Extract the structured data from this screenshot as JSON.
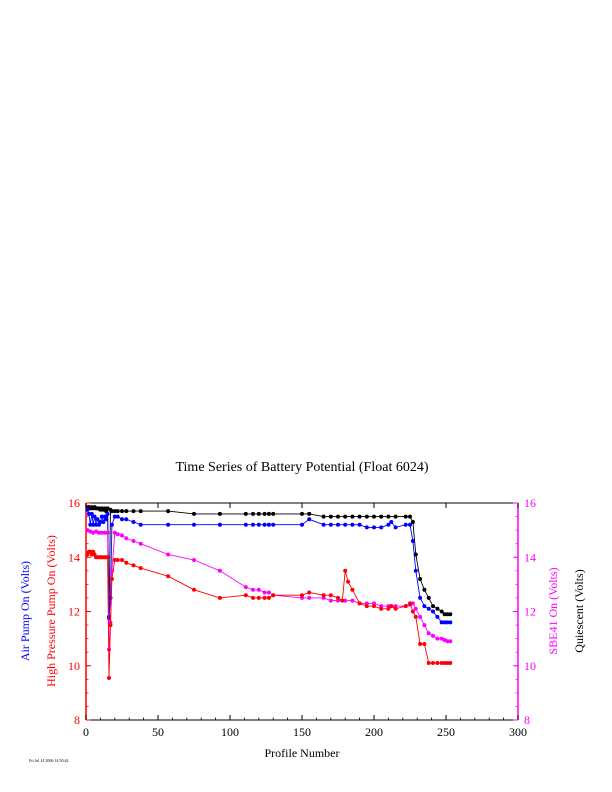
{
  "chart_data": {
    "type": "line",
    "title": "Time Series of Battery Potential (Float 6024)",
    "xlabel": "Profile Number",
    "xlim": [
      0,
      300
    ],
    "xticks": [
      0,
      50,
      100,
      150,
      200,
      250,
      300
    ],
    "ylim": [
      8,
      16
    ],
    "yticks": [
      8,
      10,
      12,
      14,
      16
    ],
    "left_axis_labels": [
      {
        "text": "Air Pump On (Volts)",
        "color": "#0000ff"
      },
      {
        "text": "High Pressure Pump On (Volts)",
        "color": "#ff0000"
      }
    ],
    "right_axis_labels": [
      {
        "text": "SBE41 On (Volts)",
        "color": "#ff00ff"
      },
      {
        "text": "Quiescent (Volts)",
        "color": "#000000"
      }
    ],
    "left_axis_color": "#ff0000",
    "right_axis_color": "#ff00ff",
    "footer_text": "Fri Jul 14 2006 14:50:44",
    "series": [
      {
        "name": "Quiescent (Volts)",
        "color": "#000000",
        "x": [
          1,
          2,
          3,
          4,
          5,
          6,
          7,
          8,
          9,
          10,
          11,
          12,
          13,
          14,
          15,
          16,
          17,
          18,
          20,
          22,
          25,
          28,
          33,
          38,
          57,
          75,
          93,
          111,
          116,
          120,
          124,
          127,
          130,
          150,
          155,
          165,
          170,
          175,
          180,
          185,
          190,
          195,
          200,
          205,
          210,
          215,
          222,
          225,
          227,
          229,
          232,
          235,
          238,
          241,
          244,
          247,
          249,
          251,
          253
        ],
        "y": [
          15.85,
          15.85,
          15.8,
          15.85,
          15.8,
          15.85,
          15.8,
          15.8,
          15.8,
          15.75,
          15.8,
          15.75,
          15.8,
          15.7,
          15.8,
          11.8,
          15.75,
          15.7,
          15.7,
          15.7,
          15.7,
          15.7,
          15.7,
          15.7,
          15.7,
          15.6,
          15.6,
          15.6,
          15.6,
          15.6,
          15.6,
          15.6,
          15.6,
          15.6,
          15.6,
          15.5,
          15.5,
          15.5,
          15.5,
          15.5,
          15.5,
          15.5,
          15.5,
          15.5,
          15.5,
          15.5,
          15.5,
          15.5,
          15.3,
          14.1,
          13.2,
          12.8,
          12.5,
          12.2,
          12.1,
          12.0,
          11.9,
          11.9,
          11.9
        ]
      },
      {
        "name": "Air Pump On (Volts)",
        "color": "#0000ff",
        "x": [
          1,
          2,
          3,
          4,
          5,
          6,
          7,
          8,
          9,
          10,
          11,
          12,
          13,
          14,
          15,
          16,
          17,
          18,
          20,
          22,
          25,
          28,
          33,
          38,
          57,
          75,
          93,
          111,
          116,
          120,
          124,
          127,
          130,
          150,
          155,
          165,
          170,
          175,
          180,
          185,
          190,
          195,
          200,
          205,
          210,
          212,
          215,
          222,
          225,
          227,
          229,
          232,
          235,
          238,
          241,
          244,
          247,
          249,
          251,
          253
        ],
        "y": [
          15.75,
          15.6,
          15.2,
          15.6,
          15.2,
          15.5,
          15.2,
          15.4,
          15.2,
          15.3,
          15.5,
          15.3,
          15.5,
          15.4,
          15.6,
          11.75,
          12.5,
          15.2,
          15.5,
          15.5,
          15.4,
          15.4,
          15.3,
          15.2,
          15.2,
          15.2,
          15.2,
          15.2,
          15.2,
          15.2,
          15.2,
          15.2,
          15.2,
          15.2,
          15.4,
          15.2,
          15.2,
          15.2,
          15.2,
          15.2,
          15.2,
          15.1,
          15.1,
          15.1,
          15.2,
          15.3,
          15.1,
          15.2,
          15.2,
          14.6,
          13.5,
          12.5,
          12.2,
          12.1,
          12.0,
          11.8,
          11.6,
          11.6,
          11.6,
          11.6
        ]
      },
      {
        "name": "SBE41 On (Volts)",
        "color": "#ff00ff",
        "x": [
          1,
          3,
          5,
          7,
          9,
          11,
          13,
          15,
          16,
          17,
          18,
          20,
          22,
          25,
          28,
          33,
          38,
          57,
          75,
          93,
          111,
          116,
          120,
          124,
          127,
          130,
          150,
          155,
          165,
          170,
          175,
          180,
          185,
          190,
          195,
          200,
          205,
          210,
          212,
          215,
          222,
          225,
          227,
          229,
          232,
          235,
          238,
          241,
          244,
          247,
          249,
          251,
          253
        ],
        "y": [
          15.0,
          14.95,
          14.9,
          14.95,
          14.9,
          14.9,
          14.9,
          14.9,
          10.6,
          11.6,
          13.5,
          14.9,
          14.85,
          14.8,
          14.7,
          14.6,
          14.5,
          14.1,
          13.9,
          13.5,
          12.9,
          12.8,
          12.8,
          12.7,
          12.7,
          12.6,
          12.5,
          12.5,
          12.5,
          12.4,
          12.4,
          12.4,
          12.4,
          12.3,
          12.3,
          12.3,
          12.2,
          12.2,
          12.2,
          12.2,
          12.2,
          12.25,
          12.3,
          12.1,
          11.8,
          11.5,
          11.2,
          11.1,
          11.0,
          11.0,
          10.95,
          10.9,
          10.9
        ]
      },
      {
        "name": "High Pressure Pump On (Volts)",
        "color": "#ff0000",
        "x": [
          1,
          2,
          3,
          4,
          5,
          6,
          7,
          8,
          9,
          10,
          11,
          12,
          13,
          14,
          15,
          16,
          17,
          18,
          20,
          22,
          25,
          28,
          33,
          38,
          57,
          75,
          93,
          111,
          116,
          120,
          124,
          127,
          130,
          150,
          155,
          165,
          170,
          175,
          178,
          180,
          182,
          185,
          190,
          195,
          200,
          205,
          210,
          212,
          215,
          222,
          225,
          227,
          229,
          232,
          235,
          238,
          241,
          244,
          247,
          249,
          251,
          253
        ],
        "y": [
          14.1,
          14.2,
          14.2,
          14.1,
          14.2,
          14.1,
          14.0,
          14.0,
          14.0,
          14.0,
          14.0,
          14.0,
          14.0,
          14.0,
          14.0,
          9.55,
          11.5,
          13.2,
          13.9,
          13.9,
          13.9,
          13.8,
          13.7,
          13.6,
          13.3,
          12.8,
          12.5,
          12.6,
          12.5,
          12.5,
          12.5,
          12.5,
          12.6,
          12.6,
          12.7,
          12.6,
          12.6,
          12.5,
          12.4,
          13.5,
          13.1,
          12.8,
          12.3,
          12.2,
          12.2,
          12.1,
          12.1,
          12.2,
          12.1,
          12.2,
          12.3,
          12.0,
          11.8,
          10.8,
          10.8,
          10.1,
          10.1,
          10.1,
          10.1,
          10.1,
          10.1,
          10.1
        ]
      }
    ]
  }
}
